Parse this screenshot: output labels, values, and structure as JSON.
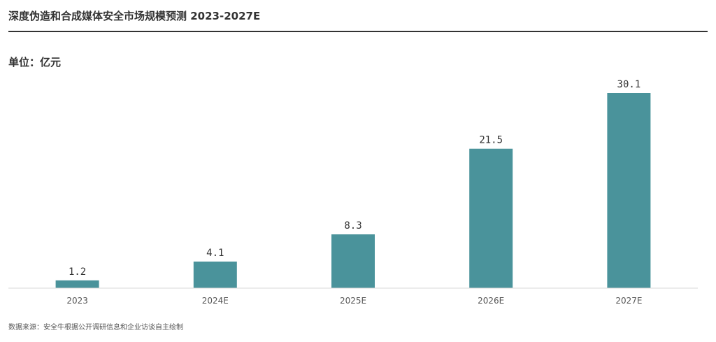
{
  "header": {
    "title": "深度伪造和合成媒体安全市场规模预测 2023-2027E",
    "unit": "单位：亿元"
  },
  "footer": {
    "source": "数据来源：安全牛根据公开调研信息和企业访谈自主绘制"
  },
  "colors": {
    "bar": "#4a939b",
    "axis": "#d9d9d9",
    "rule": "#333333"
  },
  "chart_data": {
    "type": "bar",
    "title": "深度伪造和合成媒体安全市场规模预测 2023-2027E",
    "ylabel": "单位：亿元",
    "xlabel": "",
    "categories": [
      "2023",
      "2024E",
      "2025E",
      "2026E",
      "2027E"
    ],
    "values": [
      1.2,
      4.1,
      8.3,
      21.5,
      30.1
    ],
    "value_labels": [
      "1.2",
      "4.1",
      "8.3",
      "21.5",
      "30.1"
    ],
    "ylim": [
      0,
      30.1
    ],
    "grid": false,
    "legend": "none"
  }
}
